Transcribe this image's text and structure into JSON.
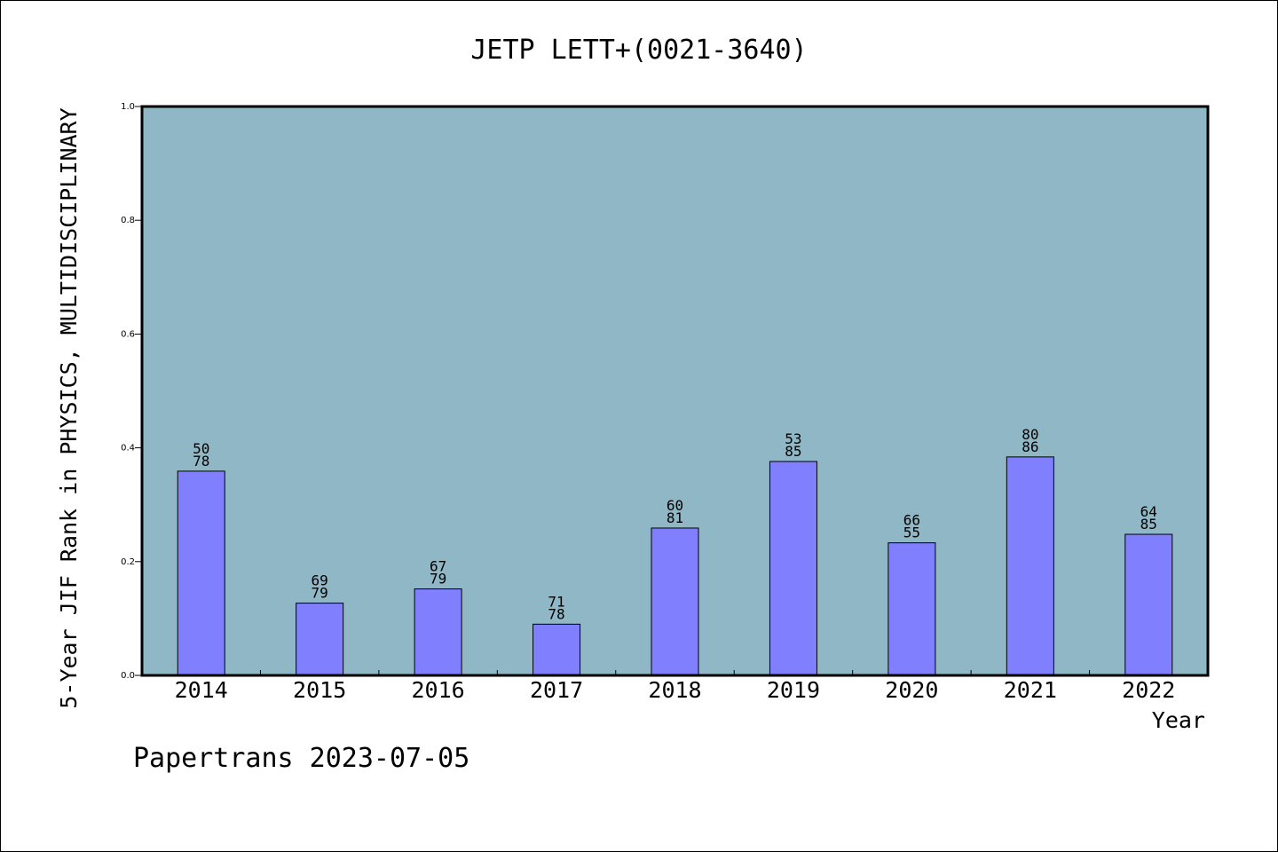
{
  "chart_data": {
    "type": "bar",
    "title": "JETP LETT+(0021-3640)",
    "xlabel": "Year",
    "ylabel": "5-Year JIF Rank in PHYSICS, MULTIDISCIPLINARY",
    "ylim": [
      0,
      1.0
    ],
    "yticks": [
      "0.0",
      "0.2",
      "0.4",
      "0.6",
      "0.8",
      "1.0"
    ],
    "categories": [
      "2014",
      "2015",
      "2016",
      "2017",
      "2018",
      "2019",
      "2020",
      "2021",
      "2022"
    ],
    "values": [
      0.359,
      0.127,
      0.152,
      0.09,
      0.259,
      0.376,
      0.233,
      0.384,
      0.248
    ],
    "labels_top": [
      "50",
      "69",
      "67",
      "71",
      "60",
      "53",
      "66",
      "80",
      "64"
    ],
    "labels_bottom": [
      "78",
      "79",
      "79",
      "78",
      "81",
      "85",
      "55",
      "86",
      "85"
    ],
    "grid": false,
    "colors": {
      "plot_bg": "#8fb7c5",
      "bar": "#8080ff",
      "bar_edge": "#000000"
    }
  },
  "footer": "Papertrans 2023-07-05"
}
